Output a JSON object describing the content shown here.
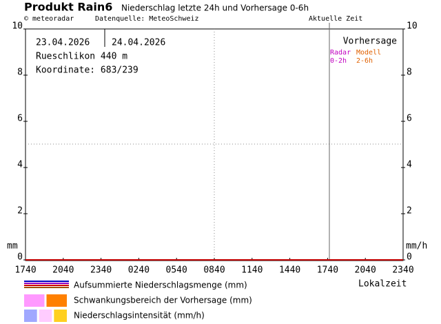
{
  "chart_data": {
    "type": "line",
    "title": "Produkt Rain6",
    "subtitle": "Niederschlag letzte 24h und Vorhersage 0-6h",
    "copyright": "© meteoradar",
    "source": "Datenquelle: MeteoSchweiz",
    "current_time_label": "Aktuelle Zeit",
    "dates": [
      "23.04.2026",
      "24.04.2026"
    ],
    "location": "Rueschlikon 440 m",
    "coordinates": "Koordinate: 683/239",
    "forecast_label": "Vorhersage",
    "forecast_parts": [
      {
        "name": "Radar",
        "range": "0-2h",
        "color": "#c000c0"
      },
      {
        "name": "Modell",
        "range": "2-6h",
        "color": "#e06000"
      }
    ],
    "ylabel": "mm",
    "y2label": "mm/h",
    "xlabel": "Lokalzeit",
    "categories": [
      "1740",
      "2040",
      "2340",
      "0240",
      "0540",
      "0840",
      "1140",
      "1440",
      "1740",
      "2040",
      "2340"
    ],
    "ylim": [
      0,
      10
    ],
    "yticks": [
      0,
      2,
      4,
      6,
      8,
      10
    ],
    "y2lim": [
      0,
      10
    ],
    "y2ticks": [
      0,
      2,
      4,
      6,
      8,
      10
    ],
    "series": [
      {
        "name": "Aufsummierte Niederschlagsmenge (mm)",
        "color": "#c00000",
        "values": [
          0,
          0,
          0,
          0,
          0,
          0,
          0,
          0,
          0,
          0,
          0
        ],
        "legend_colors": [
          "#0000c0",
          "#9000c0",
          "#d00000",
          "#a05000"
        ]
      }
    ],
    "legend_other": [
      {
        "name": "Schwankungsbereich der Vorhersage (mm)",
        "colors": [
          "#ff99ff",
          "#ff8000"
        ]
      },
      {
        "name": "Niederschlagsintensität (mm/h)",
        "colors": [
          "#a0a8ff",
          "#ffccff",
          "#ffd020"
        ]
      }
    ]
  }
}
